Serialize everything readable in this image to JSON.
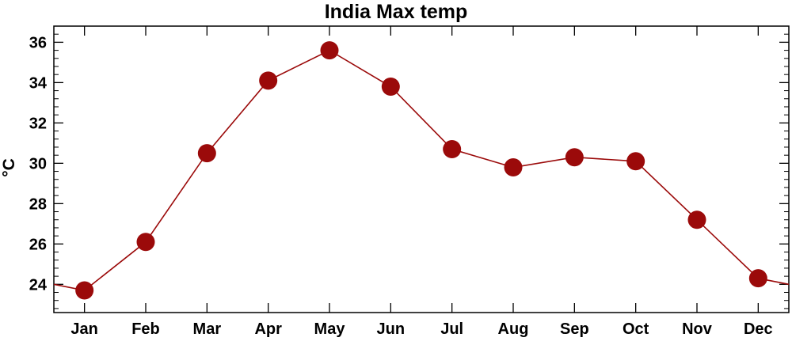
{
  "chart_data": {
    "type": "line",
    "title": "India Max temp",
    "xlabel": "",
    "ylabel": "°C",
    "categories": [
      "Jan",
      "Feb",
      "Mar",
      "Apr",
      "May",
      "Jun",
      "Jul",
      "Aug",
      "Sep",
      "Oct",
      "Nov",
      "Dec"
    ],
    "series": [
      {
        "values": [
          23.7,
          26.1,
          30.5,
          34.1,
          35.6,
          33.8,
          30.7,
          29.8,
          30.3,
          30.1,
          27.2,
          24.3
        ]
      }
    ],
    "ylim": [
      22.6,
      36.8
    ],
    "yticks": [
      "24",
      "26",
      "28",
      "30",
      "32",
      "34",
      "36"
    ],
    "grid": false,
    "legend": "none",
    "colors": {
      "line": "#9b0a0a",
      "marker": "#9b0a0a"
    }
  }
}
